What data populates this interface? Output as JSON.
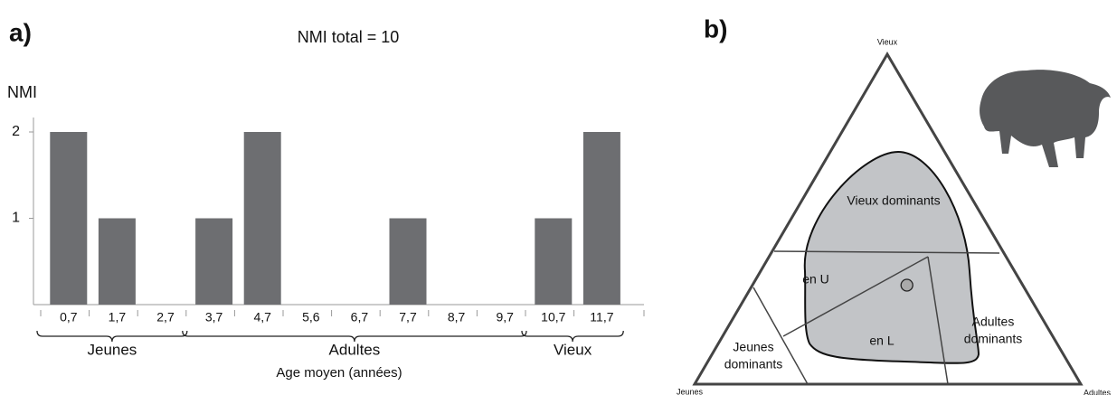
{
  "chart_data": [
    {
      "type": "bar",
      "panel": "a)",
      "title": "NMI total = 10",
      "y_label": "NMI",
      "x_label": "Age moyen (années)",
      "categories": [
        "0,7",
        "1,7",
        "2,7",
        "3,7",
        "4,7",
        "5,6",
        "6,7",
        "7,7",
        "8,7",
        "9,7",
        "10,7",
        "11,7"
      ],
      "values": [
        2,
        1,
        0,
        1,
        2,
        0,
        0,
        1,
        0,
        0,
        1,
        2
      ],
      "color": "#6d6e71",
      "ylim": [
        0,
        2
      ],
      "yticks": [
        1,
        2
      ],
      "groups": [
        {
          "label": "Jeunes",
          "members": [
            "0,7",
            "1,7",
            "2,7"
          ]
        },
        {
          "label": "Adultes",
          "members": [
            "3,7",
            "4,7",
            "5,6",
            "6,7",
            "7,7",
            "8,7",
            "9,7"
          ]
        },
        {
          "label": "Vieux",
          "members": [
            "10,7",
            "11,7"
          ]
        }
      ]
    },
    {
      "type": "ternary",
      "panel": "b)",
      "corners": {
        "top": "Vieux",
        "left": "Jeunes",
        "right": "Adultes"
      },
      "regions": [
        {
          "lines": [
            "Vieux dominants"
          ]
        },
        {
          "lines": [
            "en U"
          ]
        },
        {
          "lines": [
            "en L"
          ]
        },
        {
          "lines": [
            "Adultes",
            "dominants"
          ]
        },
        {
          "lines": [
            "Jeunes",
            "dominants"
          ]
        }
      ],
      "point": {
        "jeunes": 30,
        "adultes": 40,
        "vieux": 30
      },
      "point_color": "#aaaaaa"
    }
  ]
}
